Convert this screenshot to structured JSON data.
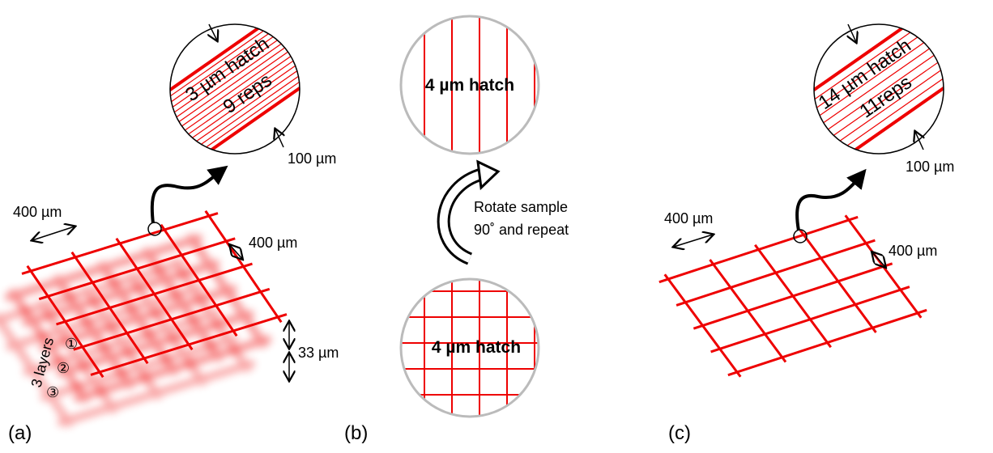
{
  "panels": [
    {
      "label": "(a)",
      "zoom": {
        "hatch": "3 µm hatch",
        "reps": "9 reps",
        "width": "100 µm"
      },
      "spacing_1": "400 µm",
      "spacing_2": "400 µm",
      "layer_height": "33 µm",
      "layers_label": "3 layers",
      "layer_marks": [
        "①",
        "②",
        "③"
      ]
    },
    {
      "label": "(b)",
      "top_hatch": "4 µm hatch",
      "instruction": [
        "Rotate sample",
        "90˚ and repeat"
      ],
      "bottom_hatch": "4 µm hatch"
    },
    {
      "label": "(c)",
      "zoom": {
        "hatch": "14 µm hatch",
        "reps": "11reps",
        "width": "100 µm"
      },
      "spacing_1": "400 µm",
      "spacing_2": "400 µm"
    }
  ]
}
